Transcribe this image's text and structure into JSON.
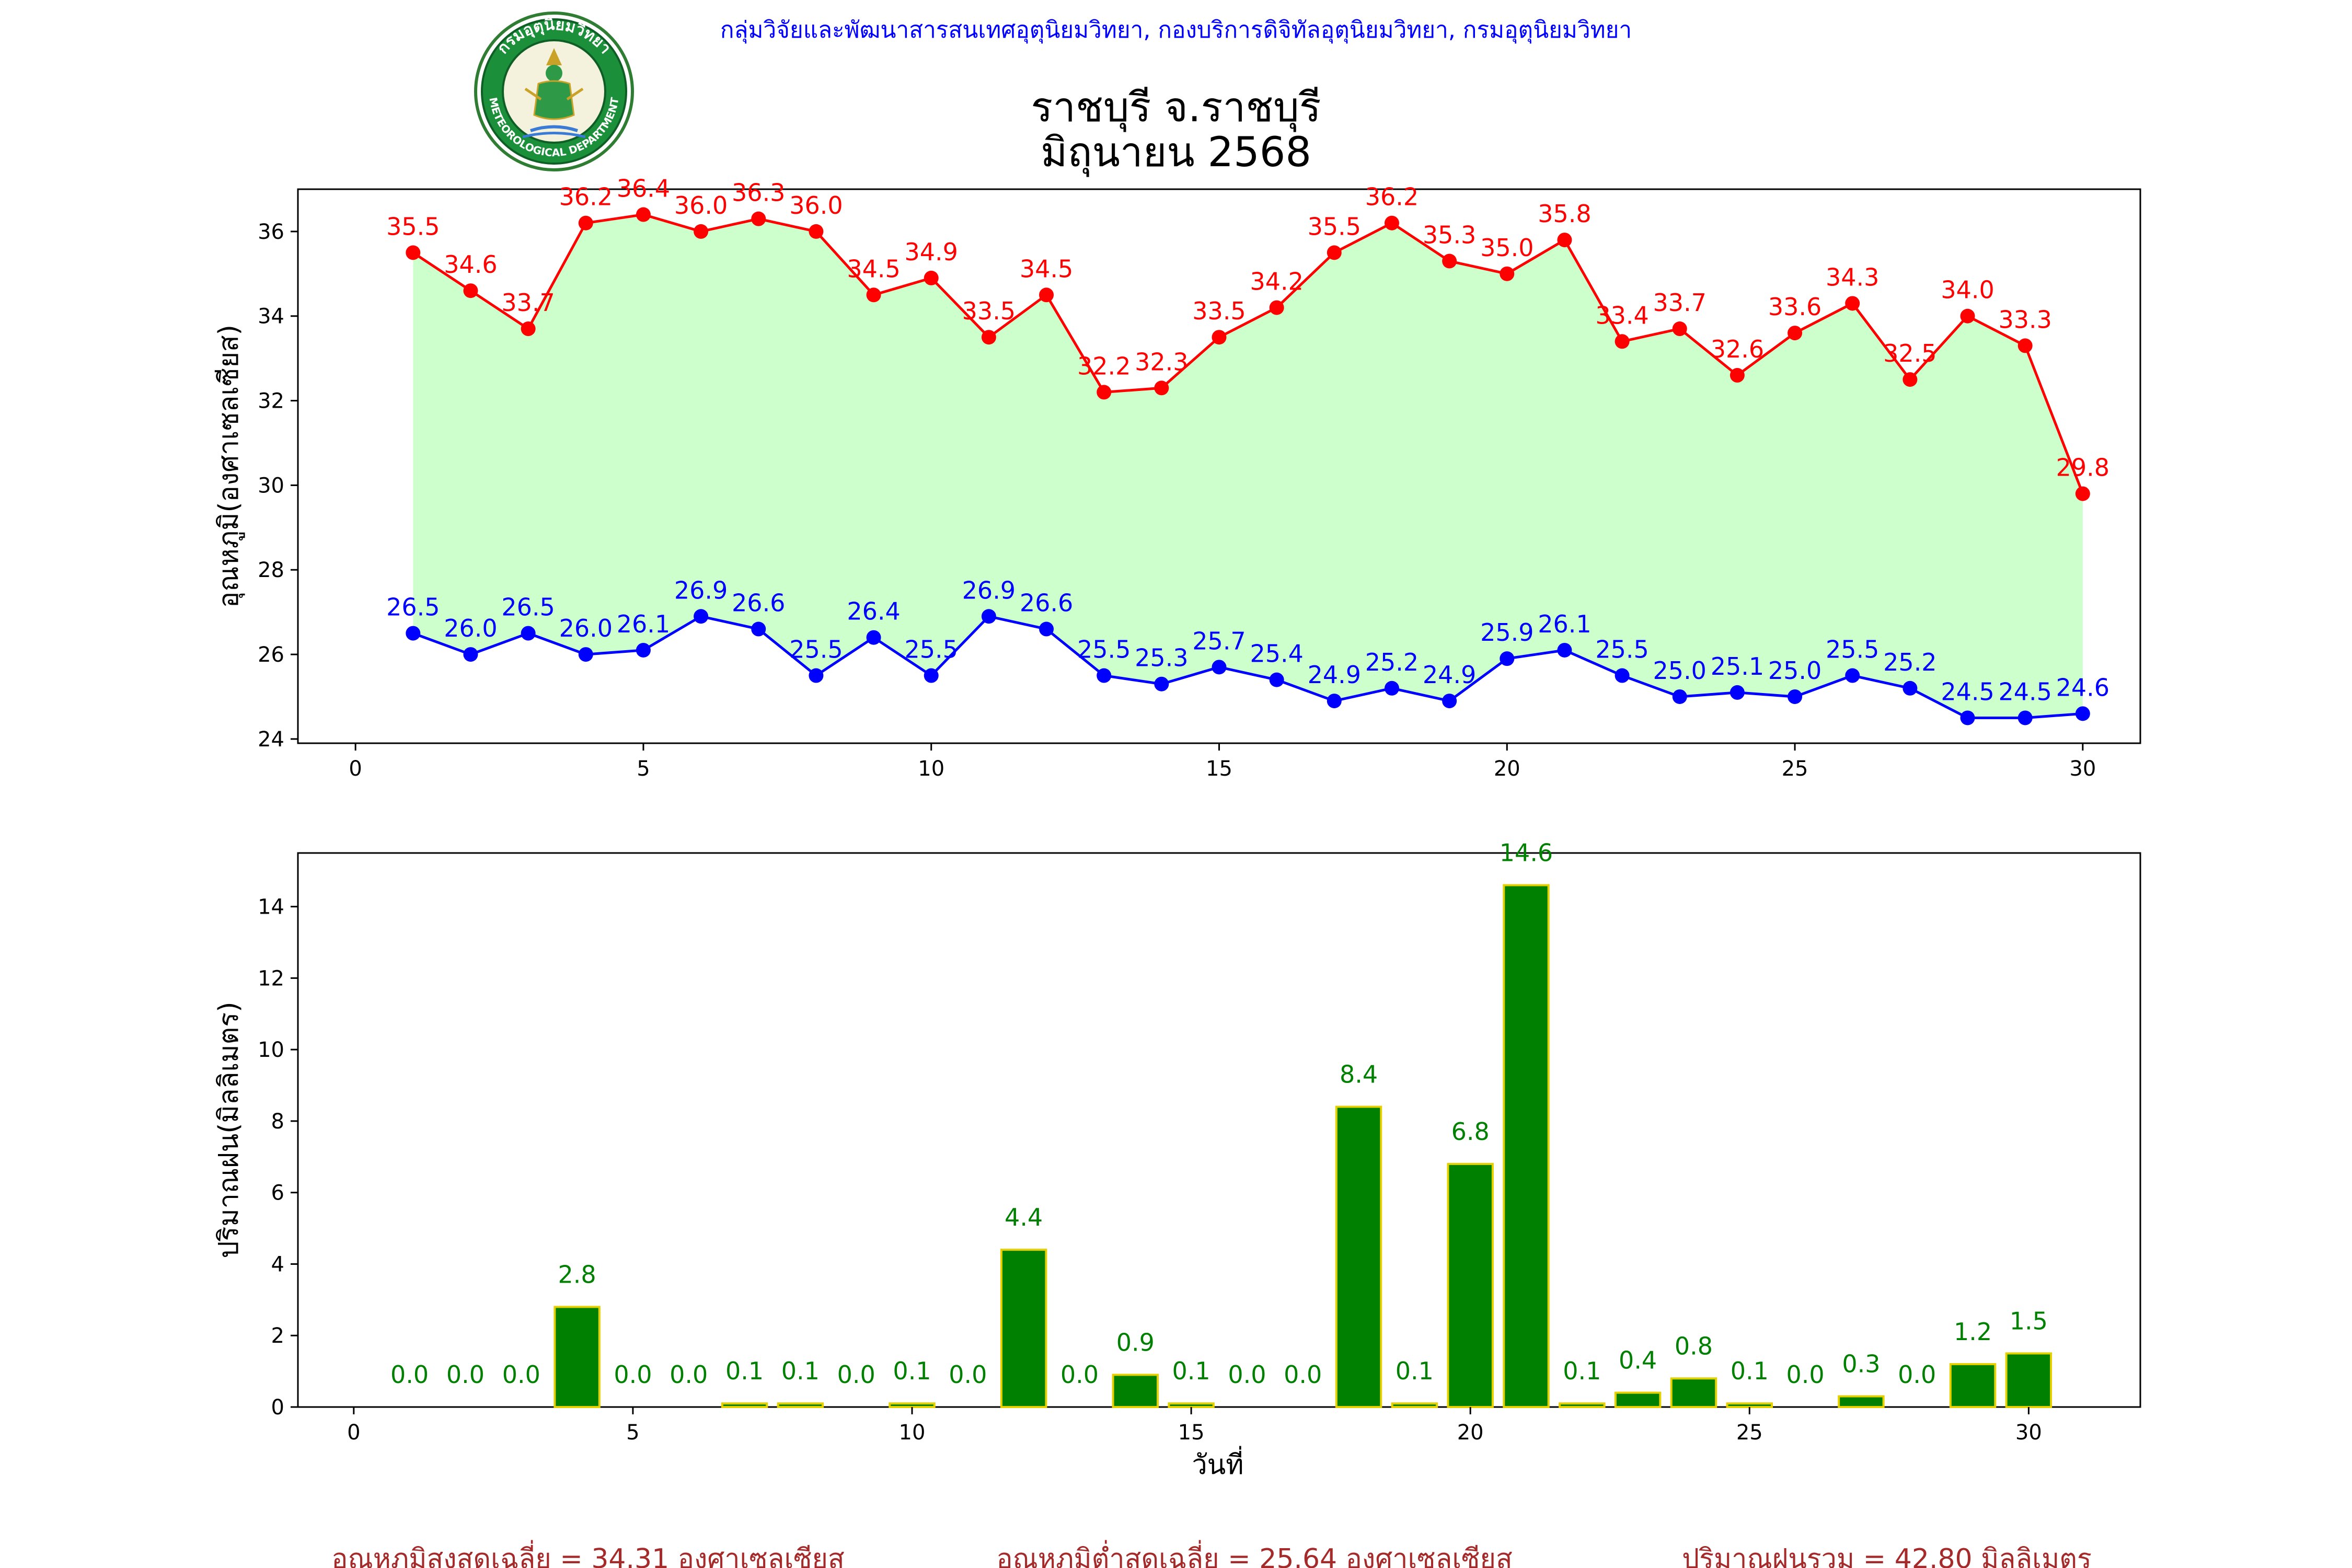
{
  "header": {
    "credit": "กลุ่มวิจัยและพัฒนาสารสนเทศอุตุนิยมวิทยา, กองบริการดิจิทัลอุตุนิยมวิทยา, กรมอุตุนิยมวิทยา",
    "title_line1": "ราชบุรี จ.ราชบุรี",
    "title_line2": "มิถุนายน 2568",
    "logo_ring_top": "กรมอุตุนิยมวิทยา",
    "logo_ring_bottom": "METEOROLOGICAL DEPARTMENT"
  },
  "colors": {
    "max_temp": "#ff0000",
    "min_temp": "#0000ff",
    "fill": "#ccffcc",
    "rain_bar": "#008000",
    "rain_edge": "#e6d000",
    "rain_label": "#008000",
    "credit": "#0000ff",
    "summary": "#a52a2a"
  },
  "chart_data": [
    {
      "type": "line",
      "ylabel": "อุณหภูมิ(องศาเซลเซียส)",
      "xlabel": "",
      "xlim": [
        -1,
        31
      ],
      "ylim": [
        23.9,
        37.0
      ],
      "x_ticks": [
        0,
        5,
        10,
        15,
        20,
        25,
        30
      ],
      "y_ticks": [
        24,
        26,
        28,
        30,
        32,
        34,
        36
      ],
      "grid": false,
      "fill_between": true,
      "x": [
        1,
        2,
        3,
        4,
        5,
        6,
        7,
        8,
        9,
        10,
        11,
        12,
        13,
        14,
        15,
        16,
        17,
        18,
        19,
        20,
        21,
        22,
        23,
        24,
        25,
        26,
        27,
        28,
        29,
        30
      ],
      "series": [
        {
          "key": "max",
          "values": [
            35.5,
            34.6,
            33.7,
            36.2,
            36.4,
            36.0,
            36.3,
            36.0,
            34.5,
            34.9,
            33.5,
            34.5,
            32.2,
            32.3,
            33.5,
            34.2,
            35.5,
            36.2,
            35.3,
            35.0,
            35.8,
            33.4,
            33.7,
            32.6,
            33.6,
            34.3,
            32.5,
            34.0,
            33.3,
            29.8
          ],
          "labels": [
            "35.5",
            "34.6",
            "33.7",
            "36.2",
            "36.4",
            "36.0",
            "36.3",
            "36.0",
            "34.5",
            "34.9",
            "33.5",
            "34.5",
            "32.2",
            "32.3",
            "33.5",
            "34.2",
            "35.5",
            "36.2",
            "35.3",
            "35.0",
            "35.8",
            "33.4",
            "33.7",
            "32.6",
            "33.6",
            "34.3",
            "32.5",
            "34.0",
            "33.3",
            "29.8"
          ]
        },
        {
          "key": "min",
          "values": [
            26.5,
            26.0,
            26.5,
            26.0,
            26.1,
            26.9,
            26.6,
            25.5,
            26.4,
            25.5,
            26.9,
            26.6,
            25.5,
            25.3,
            25.7,
            25.4,
            24.9,
            25.2,
            24.9,
            25.9,
            26.1,
            25.5,
            25.0,
            25.1,
            25.0,
            25.5,
            25.2,
            24.5,
            24.5,
            24.6
          ],
          "labels": [
            "26.5",
            "26.0",
            "26.5",
            "26.0",
            "26.1",
            "26.9",
            "26.6",
            "25.5",
            "26.4",
            "25.5",
            "26.9",
            "26.6",
            "25.5",
            "25.3",
            "25.7",
            "25.4",
            "24.9",
            "25.2",
            "24.9",
            "25.9",
            "26.1",
            "25.5",
            "25.0",
            "25.1",
            "25.0",
            "25.5",
            "25.2",
            "24.5",
            "24.5",
            "24.6"
          ]
        }
      ]
    },
    {
      "type": "bar",
      "ylabel": "ปริมาณฝน(มิลลิเมตร)",
      "xlabel": "วันที่",
      "xlim": [
        -1,
        32
      ],
      "ylim": [
        0,
        15.5
      ],
      "x_ticks": [
        0,
        5,
        10,
        15,
        20,
        25,
        30
      ],
      "y_ticks": [
        0,
        2,
        4,
        6,
        8,
        10,
        12,
        14
      ],
      "grid": false,
      "x": [
        1,
        2,
        3,
        4,
        5,
        6,
        7,
        8,
        9,
        10,
        11,
        12,
        13,
        14,
        15,
        16,
        17,
        18,
        19,
        20,
        21,
        22,
        23,
        24,
        25,
        26,
        27,
        28,
        29,
        30
      ],
      "values": [
        0.0,
        0.0,
        0.0,
        2.8,
        0.0,
        0.0,
        0.1,
        0.1,
        0.0,
        0.1,
        0.0,
        4.4,
        0.0,
        0.9,
        0.1,
        0.0,
        0.0,
        8.4,
        0.1,
        6.8,
        14.6,
        0.1,
        0.4,
        0.8,
        0.1,
        0.0,
        0.3,
        0.0,
        1.2,
        1.5
      ],
      "labels": [
        "0.0",
        "0.0",
        "0.0",
        "2.8",
        "0.0",
        "0.0",
        "0.1",
        "0.1",
        "0.0",
        "0.1",
        "0.0",
        "4.4",
        "0.0",
        "0.9",
        "0.1",
        "0.0",
        "0.0",
        "8.4",
        "0.1",
        "6.8",
        "14.6",
        "0.1",
        "0.4",
        "0.8",
        "0.1",
        "0.0",
        "0.3",
        "0.0",
        "1.2",
        "1.5"
      ]
    }
  ],
  "summary": {
    "avg_max": "อุณหภูมิสูงสุดเฉลี่ย = 34.31 องศาเซลเซียส",
    "avg_min": "อุณหภูมิต่ำสุดเฉลี่ย = 25.64 องศาเซลเซียส",
    "total_rain": "ปริมาณฝนรวม = 42.80 มิลลิเมตร"
  }
}
